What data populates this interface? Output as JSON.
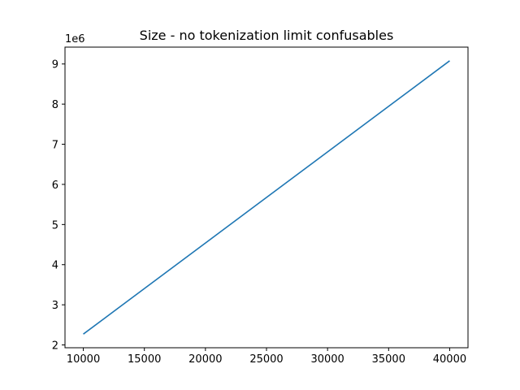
{
  "chart_data": {
    "type": "line",
    "title": "Size - no tokenization limit confusables",
    "xlabel": "",
    "ylabel": "",
    "y_offset_label": "1e6",
    "x_ticks": [
      10000,
      15000,
      20000,
      25000,
      30000,
      35000,
      40000
    ],
    "y_ticks": [
      2,
      3,
      4,
      5,
      6,
      7,
      8,
      9
    ],
    "xlim": [
      8500,
      41500
    ],
    "ylim": [
      1.93,
      9.42
    ],
    "grid": false,
    "colors": {
      "series": "#1f77b4"
    },
    "series": [
      {
        "x": [
          10000,
          40000
        ],
        "y": [
          2.27,
          9.08
        ]
      }
    ]
  }
}
